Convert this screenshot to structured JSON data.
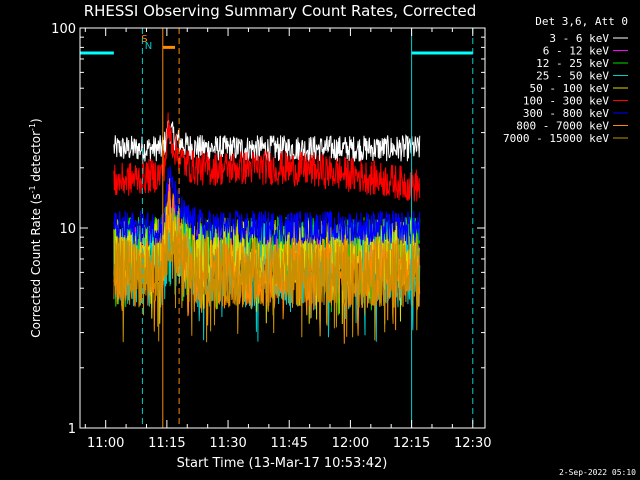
{
  "chart_data": {
    "type": "line",
    "title": "RHESSI Observing Summary Count Rates, Corrected",
    "xlabel": "Start Time (13-Mar-17 10:53:42)",
    "ylabel_main": "Corrected Count Rate (s",
    "ylabel_sup1": "-1",
    "ylabel_mid": " detector",
    "ylabel_sup2": "-1",
    "ylabel_end": ")",
    "y_scale": "log",
    "ylim": [
      1,
      100
    ],
    "xlim": [
      "10:53:42",
      "12:33:00"
    ],
    "x_ticks": [
      "11:00",
      "11:15",
      "11:30",
      "11:45",
      "12:00",
      "12:15",
      "12:30"
    ],
    "y_ticks": [
      "1",
      "10",
      "100"
    ],
    "legend_title": "Det 3,6, Att 0",
    "legend_position": "top-right",
    "footer": "2-Sep-2022 05:10",
    "flags": [
      {
        "label": "S",
        "color": "#ff8c00"
      },
      {
        "label": "N",
        "color": "#00c8c8"
      }
    ],
    "data_window": [
      "11:02:00",
      "12:17:00"
    ],
    "series": [
      {
        "name": "3 - 6 keV",
        "color": "#ffffff",
        "level": 25,
        "spread": 0.06,
        "peak": 32
      },
      {
        "name": "6 - 12 keV",
        "color": "#ff00ff",
        "level": 8,
        "spread": 0.1,
        "peak": 14
      },
      {
        "name": "12 - 25 keV",
        "color": "#00dd00",
        "level": 8,
        "spread": 0.14,
        "peak": 12
      },
      {
        "name": "25 - 50 keV",
        "color": "#00cccc",
        "level": 6.5,
        "spread": 0.2,
        "peak": 9
      },
      {
        "name": "50 - 100 keV",
        "color": "#dddd00",
        "level": 7.5,
        "spread": 0.16,
        "peak": 11
      },
      {
        "name": "100 - 300 keV",
        "color": "#ff0000",
        "level": 17,
        "spread": 0.08,
        "peak": 30
      },
      {
        "name": "300 - 800 keV",
        "color": "#0000ff",
        "level": 10,
        "spread": 0.08,
        "peak": 19
      },
      {
        "name": "800 - 7000 keV",
        "color": "#ff8800",
        "level": 6,
        "spread": 0.16,
        "peak": 13
      },
      {
        "name": "7000 - 15000 keV",
        "color": "#c89000",
        "level": 6,
        "spread": 0.16,
        "peak": 9
      }
    ],
    "background_bars": [
      {
        "from": "10:53:42",
        "to": "11:02:00",
        "value": 75,
        "color": "#00ffff"
      },
      {
        "from": "12:15:00",
        "to": "12:30:00",
        "value": 75,
        "color": "#00ffff"
      }
    ],
    "flag_bar": {
      "from": "11:14:00",
      "to": "11:17:00",
      "value": 80,
      "color": "#ff8c00"
    },
    "vlines": [
      {
        "t": "11:09:00",
        "color": "#00cccc",
        "style": "dashed"
      },
      {
        "t": "11:14:00",
        "color": "#ff8800",
        "style": "solid"
      },
      {
        "t": "11:18:00",
        "color": "#ff8800",
        "style": "dashed"
      },
      {
        "t": "12:15:00",
        "color": "#00cccc",
        "style": "solid"
      },
      {
        "t": "12:30:00",
        "color": "#00cccc",
        "style": "dashed"
      }
    ]
  }
}
